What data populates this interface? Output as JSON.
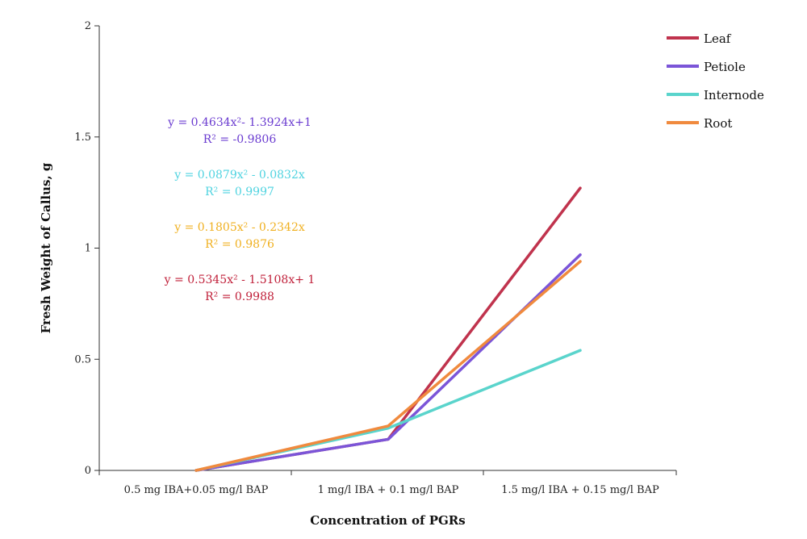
{
  "chart_data": {
    "type": "line",
    "categories": [
      "0.5 mg IBA+0.05 mg/l BAP",
      "1 mg/l IBA + 0.1 mg/l BAP",
      "1.5 mg/l IBA + 0.15 mg/l BAP"
    ],
    "series": [
      {
        "name": "Leaf",
        "color": "#c0334d",
        "values": [
          0.0,
          0.14,
          1.27
        ]
      },
      {
        "name": "Petiole",
        "color": "#7b55d8",
        "values": [
          0.0,
          0.14,
          0.97
        ]
      },
      {
        "name": "Internode",
        "color": "#5ad4cc",
        "values": [
          0.0,
          0.19,
          0.54
        ]
      },
      {
        "name": "Root",
        "color": "#f08a3e",
        "values": [
          0.0,
          0.2,
          0.94
        ]
      }
    ],
    "xlabel": "Concentration of PGRs",
    "ylabel": "Fresh Weight of Callus, g",
    "ylim": [
      0,
      2
    ],
    "yticks": [
      "0",
      "0.5",
      "1",
      "1.5",
      "2"
    ],
    "ytick_values": [
      0,
      0.5,
      1,
      1.5,
      2
    ],
    "legend_position": "top-right",
    "grid": false,
    "annotations": [
      {
        "line1": "y = 0.4634x²- 1.3924x+1",
        "line2": "R² = -0.9806",
        "color": "#6a3bd0"
      },
      {
        "line1": "y = 0.0879x² - 0.0832x",
        "line2": "R² = 0.9997",
        "color": "#4fd3e0"
      },
      {
        "line1": "y = 0.1805x² -  0.2342x",
        "line2": "R² = 0.9876",
        "color": "#f0b020"
      },
      {
        "line1": "y = 0.5345x² - 1.5108x+ 1",
        "line2": "R² = 0.9988",
        "color": "#c0203a"
      }
    ]
  }
}
